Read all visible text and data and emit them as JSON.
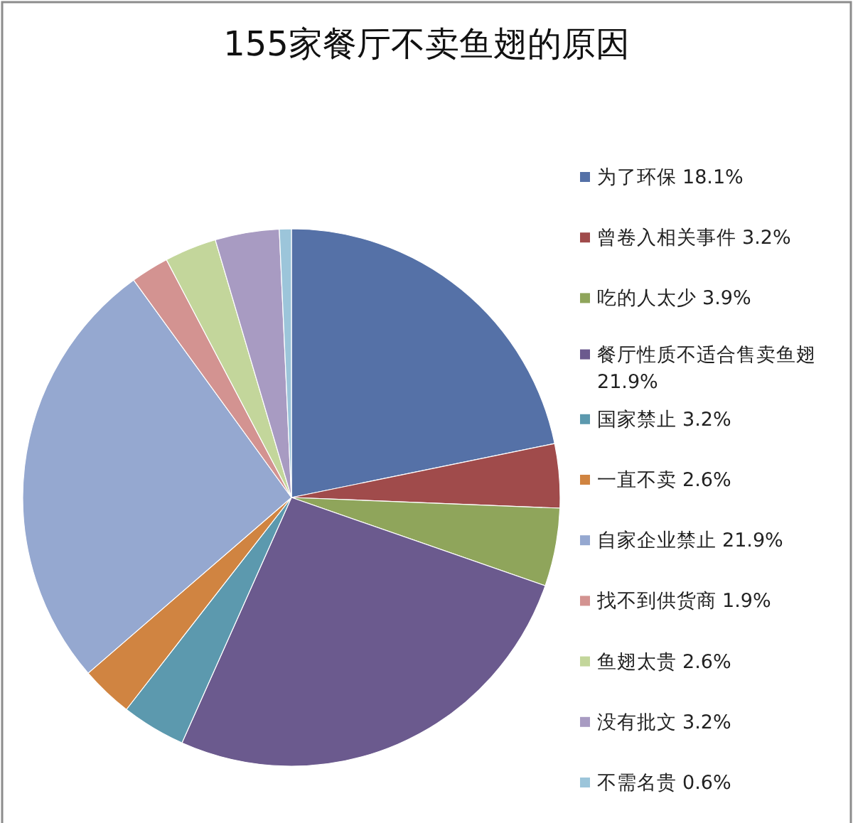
{
  "chart_data": {
    "type": "pie",
    "title": "155家餐厅不卖鱼翅的原因",
    "categories": [
      "为了环保",
      "曾卷入相关事件",
      "吃的人太少",
      "餐厅性质不适合售卖鱼翅",
      "国家禁止",
      "一直不卖",
      "自家企业禁止",
      "找不到供货商",
      "鱼翅太贵",
      "没有批文",
      "不需名贵"
    ],
    "values": [
      18.1,
      3.2,
      3.9,
      21.9,
      3.2,
      2.6,
      21.9,
      1.9,
      2.6,
      3.2,
      0.6
    ],
    "value_labels": [
      "18.1%",
      "3.2%",
      "3.9%",
      "21.9%",
      "3.2%",
      "2.6%",
      "21.9%",
      "1.9%",
      "2.6%",
      "3.2%",
      "0.6%"
    ],
    "colors": [
      "#5571a7",
      "#a04b4b",
      "#8fa55b",
      "#6b5a8e",
      "#5c99ae",
      "#d08441",
      "#95a8d0",
      "#d39391",
      "#c3d69b",
      "#a89bc2",
      "#9cc5da"
    ],
    "legend": "right"
  }
}
